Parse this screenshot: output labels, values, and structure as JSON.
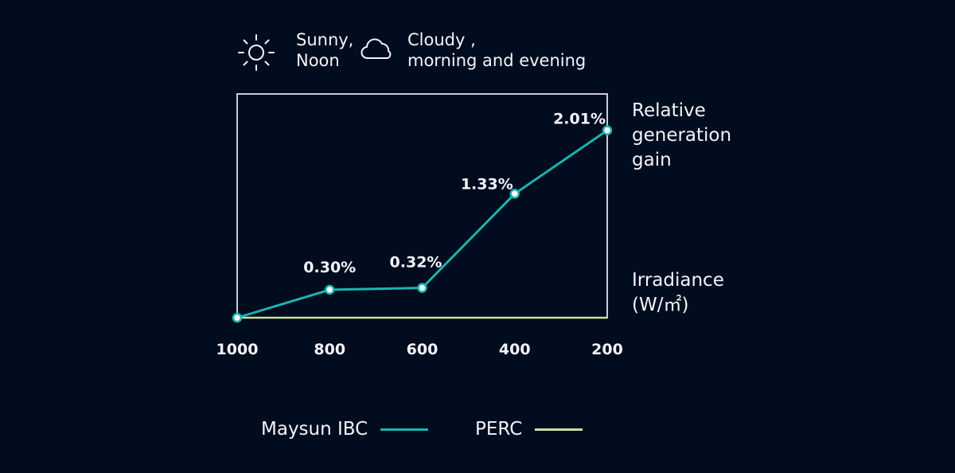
{
  "conditions": {
    "sunny": {
      "icon": "sun-icon",
      "line1": "Sunny,",
      "line2": "Noon"
    },
    "cloudy": {
      "icon": "cloud-icon",
      "line1": "Cloudy ,",
      "line2": "morning and evening"
    }
  },
  "colors": {
    "background": "#020c1f",
    "ibc": "#19b5b0",
    "perc": "#c8dea2",
    "frame": "#c9cdd4",
    "text": "#f2f4f8"
  },
  "chart_data": {
    "type": "line",
    "x": [
      1000,
      800,
      600,
      400,
      200
    ],
    "xticks": [
      "1000",
      "800",
      "600",
      "400",
      "200"
    ],
    "xlabel": [
      "Irradiance",
      "(W/㎡)"
    ],
    "ylabel": [
      "Relative",
      "generation",
      "gain"
    ],
    "xlim": [
      1000,
      200
    ],
    "ylim": [
      0,
      2.4
    ],
    "grid": false,
    "legend_position": "bottom",
    "series": [
      {
        "name": "Maysun IBC",
        "color": "#19b5b0",
        "values": [
          0,
          0.3,
          0.32,
          1.33,
          2.01
        ],
        "labels": [
          "",
          "0.30%",
          "0.32%",
          "1.33%",
          "2.01%"
        ]
      },
      {
        "name": "PERC",
        "color": "#c8dea2",
        "values": [
          0,
          0,
          0,
          0,
          0
        ]
      }
    ]
  }
}
